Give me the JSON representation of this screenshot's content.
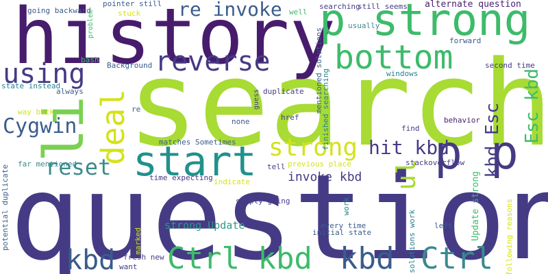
{
  "cloud": {
    "colors": {
      "purple": "#471c6c",
      "indigo": "#453b85",
      "blue": "#3a5c8c",
      "teal": "#26828e",
      "sea": "#2a9a88",
      "green": "#3dbb6b",
      "lime": "#9fd938",
      "yellow": "#d4e21a"
    },
    "words": [
      {
        "text": "question"
      },
      {
        "text": "search"
      },
      {
        "text": "history"
      },
      {
        "text": "p strong"
      },
      {
        "text": "bottom"
      },
      {
        "text": "reverse"
      },
      {
        "text": "re invoke"
      },
      {
        "text": "using"
      },
      {
        "text": "li"
      },
      {
        "text": "deal"
      },
      {
        "text": "start"
      },
      {
        "text": "Cygwin"
      },
      {
        "text": "reset"
      },
      {
        "text": "strong"
      },
      {
        "text": "p p"
      },
      {
        "text": "hit kbd"
      },
      {
        "text": "Esc kbd"
      },
      {
        "text": "kbd Esc"
      },
      {
        "text": "ul"
      },
      {
        "text": "invoke kbd"
      },
      {
        "text": "Ctrl kbd"
      },
      {
        "text": "kbd"
      },
      {
        "text": "kbd"
      },
      {
        "text": "Ctrl"
      },
      {
        "text": "strong Update"
      },
      {
        "text": "Update strong"
      },
      {
        "text": "alternate question"
      },
      {
        "text": "going backward"
      },
      {
        "text": "pointer still"
      },
      {
        "text": "stuck"
      },
      {
        "text": "problem"
      },
      {
        "text": "well"
      },
      {
        "text": "searching"
      },
      {
        "text": "still seems"
      },
      {
        "text": "usually"
      },
      {
        "text": "forward"
      },
      {
        "text": "windows"
      },
      {
        "text": "second time"
      },
      {
        "text": "mentioned solutions"
      },
      {
        "text": "finished searching"
      },
      {
        "text": "duplicate"
      },
      {
        "text": "guess"
      },
      {
        "text": "bash"
      },
      {
        "text": "Background"
      },
      {
        "text": "state instead"
      },
      {
        "text": "always"
      },
      {
        "text": "re"
      },
      {
        "text": "way back"
      },
      {
        "text": "none"
      },
      {
        "text": "href"
      },
      {
        "text": "find"
      },
      {
        "text": "behavior"
      },
      {
        "text": "matches Sometimes"
      },
      {
        "text": "far mentioned"
      },
      {
        "text": "tell"
      },
      {
        "text": "previous place"
      },
      {
        "text": "stackoverflow"
      },
      {
        "text": "potential duplicate"
      },
      {
        "text": "time expecting"
      },
      {
        "text": "indicate"
      },
      {
        "text": "simply going"
      },
      {
        "text": "work"
      },
      {
        "text": "solutions work"
      },
      {
        "text": "every time"
      },
      {
        "text": "initial state"
      },
      {
        "text": "left"
      },
      {
        "text": "following reasons"
      },
      {
        "text": "marked"
      },
      {
        "text": "fresh new"
      },
      {
        "text": "want"
      }
    ]
  }
}
